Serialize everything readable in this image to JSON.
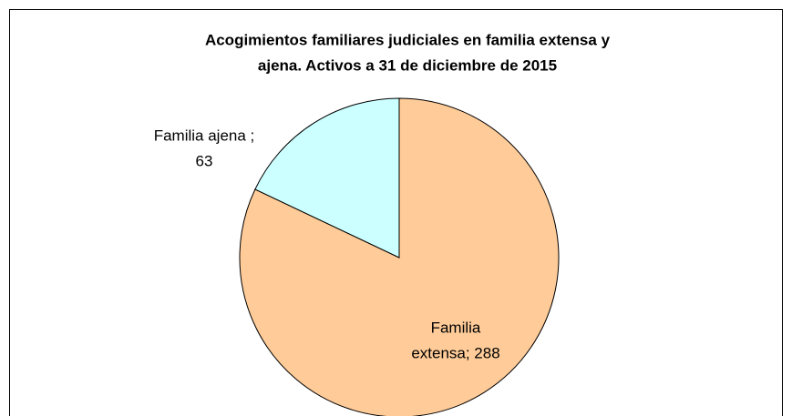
{
  "chart_data": {
    "type": "pie",
    "title": [
      "Acogimientos familiares judiciales en familia extensa y",
      "ajena. Activos a 31 de diciembre de 2015"
    ],
    "values": [
      288,
      63
    ],
    "colors": [
      "#ffcc99",
      "#ccffff"
    ],
    "data_labels": [
      [
        "Familia",
        "extensa; 288"
      ],
      [
        "Familia ajena ;",
        "63"
      ]
    ]
  }
}
